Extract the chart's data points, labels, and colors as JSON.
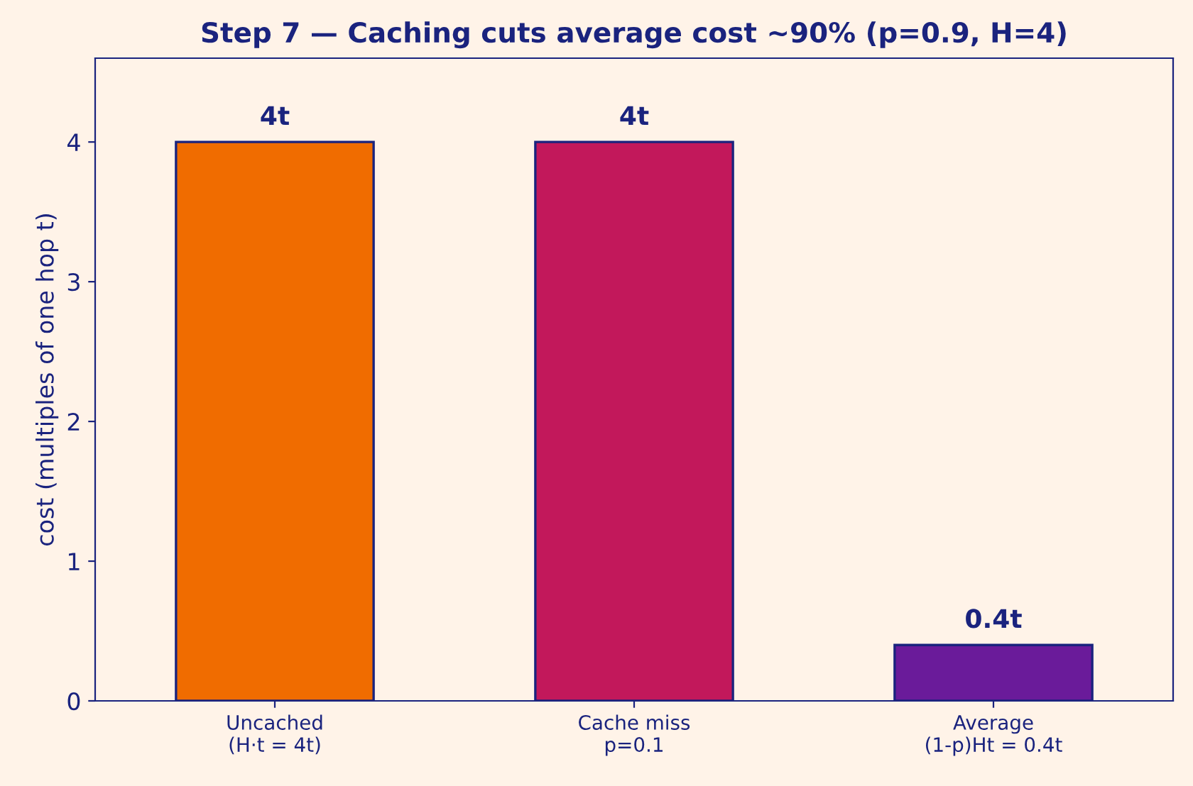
{
  "chart_data": {
    "type": "bar",
    "title": "Step 7 — Caching cuts average cost ~90% (p=0.9, H=4)",
    "ylabel": "cost (multiples of one hop t)",
    "categories": [
      "Uncached\n(H·t = 4t)",
      "Cache miss\np=0.1",
      "Average\n(1-p)Ht = 0.4t"
    ],
    "values": [
      4,
      4,
      0.4
    ],
    "colors": [
      "#f06c00",
      "#c2185b",
      "#6a1b9a"
    ],
    "value_labels": [
      "4t",
      "4t",
      "0.4t"
    ],
    "ylim": [
      0,
      4.6
    ],
    "yticks": [
      0,
      1,
      2,
      3,
      4
    ],
    "grid": false,
    "legend": false
  }
}
